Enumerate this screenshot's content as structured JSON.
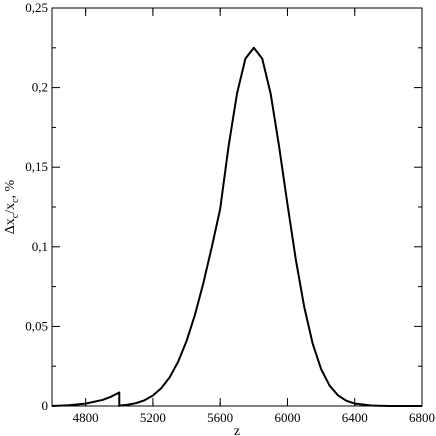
{
  "chart_data": {
    "type": "line",
    "title": "",
    "xlabel": "z",
    "ylabel_parts": {
      "delta": "Δx",
      "sub1": "c",
      "slash": "/x",
      "sub2": "c",
      "unit": ", %"
    },
    "xlim": [
      4600,
      6800
    ],
    "ylim": [
      0,
      0.25
    ],
    "x_ticks": [
      {
        "value": 4800,
        "label": "4800"
      },
      {
        "value": 5200,
        "label": "5200"
      },
      {
        "value": 5600,
        "label": "5600"
      },
      {
        "value": 6000,
        "label": "6000"
      },
      {
        "value": 6400,
        "label": "6400"
      },
      {
        "value": 6800,
        "label": "6800"
      }
    ],
    "y_ticks": [
      {
        "value": 0,
        "label": "0"
      },
      {
        "value": 0.05,
        "label": "0,05"
      },
      {
        "value": 0.1,
        "label": "0,1"
      },
      {
        "value": 0.15,
        "label": "0,15"
      },
      {
        "value": 0.2,
        "label": "0,2"
      },
      {
        "value": 0.25,
        "label": "0,25"
      }
    ],
    "grid": false,
    "series": [
      {
        "color": "#000000",
        "x": [
          4600,
          4700,
          4800,
          4900,
          4950,
          5000,
          5000,
          5005,
          5050,
          5100,
          5150,
          5200,
          5250,
          5300,
          5350,
          5400,
          5450,
          5500,
          5550,
          5600,
          5650,
          5700,
          5750,
          5800,
          5850,
          5900,
          5950,
          6000,
          6050,
          6100,
          6150,
          6200,
          6250,
          6300,
          6350,
          6400,
          6500,
          6600,
          6700,
          6800
        ],
        "y": [
          0.0,
          0.0005,
          0.0015,
          0.0038,
          0.0058,
          0.0085,
          0.0,
          0.0003,
          0.0008,
          0.0018,
          0.0036,
          0.0066,
          0.0112,
          0.0181,
          0.0278,
          0.0408,
          0.0573,
          0.0772,
          0.0998,
          0.1238,
          0.1632,
          0.1962,
          0.2182,
          0.225,
          0.2182,
          0.1962,
          0.1632,
          0.1268,
          0.0918,
          0.0621,
          0.0392,
          0.0232,
          0.0129,
          0.0067,
          0.0033,
          0.0015,
          0.0003,
          0.0,
          0.0,
          0.0
        ]
      }
    ]
  }
}
